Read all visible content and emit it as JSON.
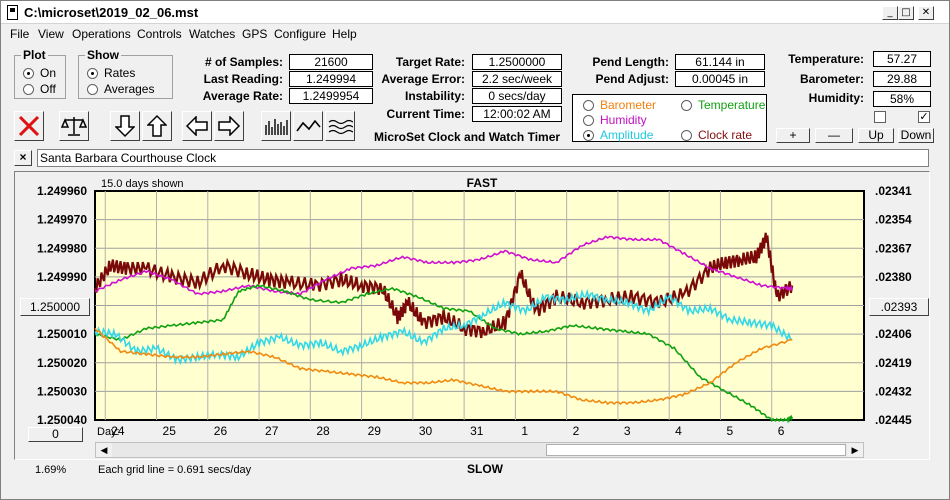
{
  "window": {
    "title": "C:\\microset\\2019_02_06.mst"
  },
  "titlebar_buttons": [
    "_",
    "□",
    "✕"
  ],
  "menu": [
    "File",
    "View",
    "Operations",
    "Controls",
    "Watches",
    "GPS",
    "Configure",
    "Help"
  ],
  "plot_group": {
    "title": "Plot",
    "options": [
      "On",
      "Off"
    ],
    "selected": 0
  },
  "show_group": {
    "title": "Show",
    "options": [
      "Rates",
      "Averages"
    ],
    "selected": 0
  },
  "stats_left": [
    {
      "label": "# of Samples:",
      "value": "21600"
    },
    {
      "label": "Last Reading:",
      "value": "1.249994"
    },
    {
      "label": "Average Rate:",
      "value": "1.2499954"
    }
  ],
  "stats_mid": [
    {
      "label": "Target Rate:",
      "value": "1.2500000"
    },
    {
      "label": "Average Error:",
      "value": "2.2 sec/week"
    },
    {
      "label": "Instability:",
      "value": "0 secs/day"
    },
    {
      "label": "Current Time:",
      "value": "12:00:02 AM"
    }
  ],
  "pend": [
    {
      "label": "Pend Length:",
      "value": "61.144 in"
    },
    {
      "label": "Pend Adjust:",
      "value": "0.00045 in"
    }
  ],
  "env": [
    {
      "label": "Temperature:",
      "value": "57.27"
    },
    {
      "label": "Barometer:",
      "value": "29.88"
    },
    {
      "label": "Humidity:",
      "value": "58%"
    }
  ],
  "app_label": "MicroSet Clock and Watch Timer",
  "series_options": [
    {
      "label": "Barometer",
      "color": "#f08010",
      "checked": false
    },
    {
      "label": "Temperature",
      "color": "#10a010",
      "checked": false
    },
    {
      "label": "Humidity",
      "color": "#c010c0",
      "checked": false
    },
    {
      "label": "Amplitude",
      "color": "#20d0e0",
      "checked": true
    },
    {
      "label": "Clock rate",
      "color": "#801010",
      "checked": false
    }
  ],
  "adjust_buttons": [
    "+",
    "—",
    "Up",
    "Down"
  ],
  "checkboxes": [
    false,
    true
  ],
  "clock_name": "Santa Barbara Courthouse Clock",
  "close_name_button": "×",
  "chart_data": {
    "type": "line",
    "days_shown": "15.0 days shown",
    "top_label": "FAST",
    "bottom_label": "SLOW",
    "left_ticks": [
      "1.249960",
      "1.249970",
      "1.249980",
      "1.249990",
      "1.250000",
      "1.250010",
      "1.250020",
      "1.250030",
      "1.250040"
    ],
    "right_ticks": [
      ".02341",
      ".02354",
      ".02367",
      ".02380",
      ".02393",
      ".02406",
      ".02419",
      ".02432",
      ".02445"
    ],
    "ylim": [
      1.24996,
      1.25004
    ],
    "center_button": "1.250000",
    "right_center_button": ".02393",
    "day_prefix": "Day:",
    "x_ticks": [
      "24",
      "25",
      "26",
      "27",
      "28",
      "29",
      "30",
      "31",
      "1",
      "2",
      "3",
      "4",
      "5",
      "6"
    ],
    "zero_button": "0",
    "grid_note": "Each grid line = 0.691 secs/day",
    "percent": "1.69%",
    "series": [
      {
        "name": "Clock rate",
        "color": "#7a0a0a",
        "x": [
          0,
          0.3,
          0.6,
          1.0,
          1.5,
          2.0,
          2.5,
          3.0,
          3.4,
          3.8,
          4.3,
          4.8,
          5.2,
          5.6,
          5.9,
          6.1,
          6.4,
          6.8,
          7.2,
          7.6,
          8.0,
          8.3,
          8.6,
          9.0,
          9.5,
          10.0,
          10.5,
          11.0,
          11.5,
          12.0,
          12.3,
          12.6,
          12.9,
          13.1,
          13.3,
          13.6
        ],
        "y": [
          1.249994,
          1.249986,
          1.249987,
          1.249987,
          1.24999,
          1.249992,
          1.249986,
          1.249989,
          1.249991,
          1.249992,
          1.249993,
          1.249991,
          1.249993,
          1.249994,
          1.250004,
          1.249999,
          1.250006,
          1.250004,
          1.250008,
          1.250009,
          1.250006,
          1.249989,
          1.250002,
          1.249997,
          1.249999,
          1.249998,
          1.249997,
          1.249999,
          1.249996,
          1.249987,
          1.249985,
          1.249984,
          1.249983,
          1.249976,
          1.249997,
          1.249993
        ]
      },
      {
        "name": "Humidity",
        "color": "#d010d0",
        "x": [
          0,
          0.5,
          1.0,
          1.5,
          2.0,
          2.5,
          3.0,
          3.5,
          4.0,
          4.5,
          5.0,
          5.5,
          6.0,
          6.5,
          7.0,
          7.5,
          8.0,
          8.5,
          9.0,
          9.5,
          10.0,
          10.5,
          11.0,
          11.5,
          12.0,
          12.5,
          13.0,
          13.5,
          13.6
        ],
        "y": [
          1.249995,
          1.249991,
          1.249988,
          1.249991,
          1.249996,
          1.249995,
          1.249993,
          1.249995,
          1.249996,
          1.249991,
          1.249987,
          1.249986,
          1.249983,
          1.249985,
          1.249985,
          1.249984,
          1.249981,
          1.249984,
          1.249985,
          1.249979,
          1.249976,
          1.249977,
          1.249977,
          1.249982,
          1.249987,
          1.24999,
          1.249993,
          1.249994,
          1.249994
        ]
      },
      {
        "name": "Temperature",
        "color": "#10a010",
        "x": [
          0,
          0.5,
          1.0,
          1.5,
          2.0,
          2.5,
          2.8,
          3.2,
          3.7,
          4.2,
          4.8,
          5.3,
          5.8,
          6.3,
          6.8,
          7.3,
          7.8,
          8.3,
          8.8,
          9.3,
          9.8,
          10.3,
          10.8,
          11.3,
          11.8,
          12.3,
          12.8,
          13.2,
          13.5,
          13.6
        ],
        "y": [
          1.25001,
          1.250012,
          1.250008,
          1.250007,
          1.250006,
          1.250005,
          1.249995,
          1.249993,
          1.249995,
          1.249998,
          1.249999,
          1.249996,
          1.249994,
          1.249997,
          1.250001,
          1.250002,
          1.250008,
          1.25001,
          1.250009,
          1.250007,
          1.250008,
          1.250009,
          1.25001,
          1.250015,
          1.250025,
          1.25003,
          1.250035,
          1.25004,
          1.25004,
          1.250039
        ]
      },
      {
        "name": "Amplitude",
        "color": "#30d8e8",
        "x": [
          0,
          0.4,
          0.8,
          1.2,
          1.6,
          2.0,
          2.4,
          2.8,
          3.2,
          3.6,
          4.0,
          4.4,
          4.8,
          5.2,
          5.6,
          6.0,
          6.4,
          6.8,
          7.2,
          7.6,
          8.0,
          8.4,
          8.8,
          9.2,
          9.6,
          10.0,
          10.4,
          10.8,
          11.2,
          11.6,
          12.0,
          12.4,
          12.8,
          13.2,
          13.6
        ],
        "y": [
          1.250009,
          1.25001,
          1.250016,
          1.250015,
          1.250019,
          1.250018,
          1.250017,
          1.250018,
          1.250013,
          1.250011,
          1.250014,
          1.250013,
          1.250016,
          1.250014,
          1.250011,
          1.250009,
          1.250013,
          1.250008,
          1.250007,
          1.250003,
          1.249999,
          1.250002,
          1.249997,
          1.249998,
          1.249996,
          1.249998,
          1.249999,
          1.250002,
          1.249997,
          1.250002,
          1.250001,
          1.250005,
          1.250006,
          1.250007,
          1.250012
        ]
      },
      {
        "name": "Barometer",
        "color": "#f08a10",
        "x": [
          0,
          0.5,
          1.0,
          1.5,
          2.0,
          2.5,
          3.0,
          3.5,
          4.0,
          4.5,
          5.0,
          5.5,
          6.0,
          6.5,
          7.0,
          7.5,
          8.0,
          8.5,
          9.0,
          9.5,
          10.0,
          10.5,
          11.0,
          11.5,
          12.0,
          12.5,
          13.0,
          13.6
        ],
        "y": [
          1.250008,
          1.250016,
          1.250017,
          1.250018,
          1.250018,
          1.250017,
          1.250016,
          1.250018,
          1.250022,
          1.250023,
          1.250024,
          1.250025,
          1.250027,
          1.250027,
          1.250026,
          1.250028,
          1.25003,
          1.25003,
          1.25003,
          1.250033,
          1.250034,
          1.250034,
          1.250033,
          1.250031,
          1.250027,
          1.25002,
          1.250015,
          1.250012
        ]
      }
    ]
  }
}
